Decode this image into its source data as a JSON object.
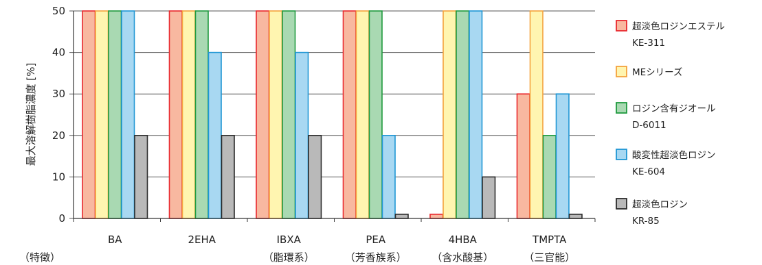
{
  "chart_data": {
    "type": "bar",
    "ylabel": "最大溶解樹脂濃度 [%]",
    "ylim": [
      0,
      50
    ],
    "yticks": [
      0,
      10,
      20,
      30,
      40,
      50
    ],
    "grid": true,
    "legend_position": "right",
    "row_label": "（特徴）",
    "categories": [
      "BA",
      "2EHA",
      "IBXA",
      "PEA",
      "4HBA",
      "TMPTA"
    ],
    "category_notes": [
      "",
      "",
      "（脂環系）",
      "（芳香族系）",
      "（含水酸基）",
      "（三官能）"
    ],
    "series": [
      {
        "name": "超淡色ロジンエステル",
        "name2": "KE-311",
        "fill": "#f8b8a0",
        "stroke": "#e8272d",
        "values": [
          50,
          50,
          50,
          50,
          1,
          30
        ]
      },
      {
        "name": "MEシリーズ",
        "name2": "",
        "fill": "#fff5b0",
        "stroke": "#f4a23c",
        "values": [
          50,
          50,
          50,
          50,
          50,
          50
        ]
      },
      {
        "name": "ロジン含有ジオール",
        "name2": "D-6011",
        "fill": "#a9d9b2",
        "stroke": "#1f9a3e",
        "values": [
          50,
          50,
          50,
          50,
          50,
          20
        ]
      },
      {
        "name": "酸変性超淡色ロジン",
        "name2": "KE-604",
        "fill": "#a8d8f2",
        "stroke": "#1f96d4",
        "values": [
          50,
          40,
          40,
          20,
          50,
          30
        ]
      },
      {
        "name": "超淡色ロジン",
        "name2": "KR-85",
        "fill": "#b9b9b9",
        "stroke": "#2b2b2b",
        "values": [
          20,
          20,
          20,
          1,
          10,
          1
        ]
      }
    ]
  }
}
